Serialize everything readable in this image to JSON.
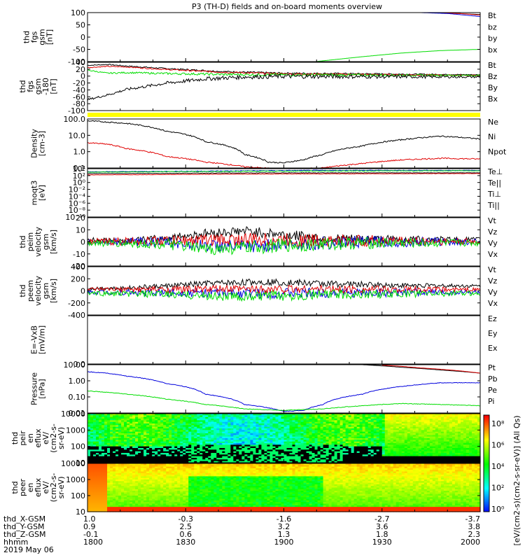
{
  "title": "P3 (TH-D) fields and on-board moments overview",
  "colors": {
    "black": "#000000",
    "red": "#e00000",
    "green": "#00dd00",
    "blue": "#0000dd",
    "yellow": "#ffff00"
  },
  "chart_data": [
    {
      "type": "line",
      "ylabel": [
        "thd",
        "fgs",
        "gsm",
        "[nT]"
      ],
      "yticks": [
        "100",
        "50",
        "0",
        "-50",
        "-100"
      ],
      "ylim": [
        -100,
        100
      ],
      "legend": [
        {
          "name": "Bt",
          "color": "#000000"
        },
        {
          "name": "bz",
          "color": "#e00000"
        },
        {
          "name": "by",
          "color": "#00dd00"
        },
        {
          "name": "bx",
          "color": "#0000dd"
        }
      ],
      "series": [
        {
          "name": "Bt",
          "x": [
            0.89,
            0.95,
            1.0
          ],
          "values": [
            100,
            96,
            92
          ],
          "noise": 0
        },
        {
          "name": "bz",
          "x": [
            0.89,
            0.95,
            1.0
          ],
          "values": [
            100,
            96,
            90
          ],
          "noise": 0
        },
        {
          "name": "by",
          "x": [
            0.58,
            0.7,
            0.8,
            0.9,
            1.0
          ],
          "values": [
            -100,
            -80,
            -65,
            -55,
            -50
          ],
          "noise": 0
        },
        {
          "name": "bx",
          "x": [
            0.85,
            0.92,
            1.0
          ],
          "values": [
            100,
            96,
            84
          ],
          "noise": 0
        }
      ]
    },
    {
      "type": "line",
      "ylabel": [
        "thd",
        "fgs",
        "gsm",
        "-180",
        "[nT]"
      ],
      "yticks": [
        "40",
        "20",
        "0",
        "-20",
        "-40",
        "-60",
        "-80",
        "-100"
      ],
      "ylim": [
        -110,
        45
      ],
      "legend": [
        {
          "name": "Bt",
          "color": "#000000"
        },
        {
          "name": "Bz",
          "color": "#e00000"
        },
        {
          "name": "By",
          "color": "#00dd00"
        },
        {
          "name": "Bx",
          "color": "#000000"
        }
      ],
      "series": [
        {
          "name": "Bt",
          "x": [
            0,
            0.05,
            0.1,
            0.2,
            0.35,
            0.5,
            1.0
          ],
          "values": [
            35,
            38,
            33,
            25,
            15,
            10,
            5
          ],
          "noise": 2
        },
        {
          "name": "Bz",
          "x": [
            0,
            0.05,
            0.1,
            0.2,
            0.35,
            0.5,
            1.0
          ],
          "values": [
            28,
            32,
            30,
            22,
            13,
            8,
            3
          ],
          "noise": 2
        },
        {
          "name": "By",
          "x": [
            0,
            0.05,
            0.1,
            0.2,
            0.35,
            0.5,
            1.0
          ],
          "values": [
            20,
            10,
            12,
            9,
            6,
            5,
            3
          ],
          "noise": 3
        },
        {
          "name": "Bx",
          "x": [
            0,
            0.05,
            0.1,
            0.2,
            0.3,
            0.4,
            0.5,
            1.0
          ],
          "values": [
            -75,
            -60,
            -42,
            -22,
            -8,
            -2,
            0,
            -2
          ],
          "noise": 5
        }
      ]
    },
    {
      "type": "line",
      "ylabel": [
        "Density",
        "[cm-3]"
      ],
      "yticks": [
        "100.0",
        "10.0",
        "1.0",
        "0.1"
      ],
      "ylim": [
        0.1,
        200
      ],
      "log": true,
      "legend": [
        {
          "name": "Ne",
          "color": "#e00000"
        },
        {
          "name": "Ni",
          "color": "#000000"
        },
        {
          "name": "Npot",
          "color": "#0000dd"
        }
      ],
      "series": [
        {
          "name": "Ni",
          "x": [
            0,
            0.1,
            0.2,
            0.3,
            0.4,
            0.46,
            0.5,
            0.55,
            0.6,
            0.7,
            0.8,
            0.9,
            1.0
          ],
          "values": [
            150,
            100,
            30,
            6,
            0.8,
            0.25,
            0.22,
            0.35,
            0.8,
            3,
            8,
            14,
            9
          ],
          "noise": 0.02
        },
        {
          "name": "Ne",
          "x": [
            0,
            0.05,
            0.1,
            0.2,
            0.3,
            0.4,
            0.5,
            0.6,
            0.7,
            0.8,
            0.9,
            1.0
          ],
          "values": [
            5,
            4,
            2,
            0.6,
            0.25,
            0.12,
            0.08,
            0.1,
            0.2,
            0.35,
            0.45,
            0.4
          ],
          "noise": 0.02
        }
      ]
    },
    {
      "type": "line",
      "ylabel": [
        "moqt3",
        "[eV]"
      ],
      "yticks": [
        "10⁴",
        "10²",
        "10⁰",
        "10⁻²",
        "10⁻⁴",
        "10⁻⁶",
        "10⁻⁸",
        "10⁻¹⁰"
      ],
      "ylim": [
        -10,
        4
      ],
      "legend": [
        {
          "name": "Te⊥",
          "color": "#e00000"
        },
        {
          "name": "Te||",
          "color": "#000000"
        },
        {
          "name": "Ti⊥",
          "color": "#0000dd"
        },
        {
          "name": "Ti||",
          "color": "#00dd00"
        }
      ],
      "series": [
        {
          "name": "Ti⊥",
          "x": [
            0,
            0.3,
            0.6,
            1.0
          ],
          "values": [
            3.1,
            3.3,
            3.5,
            3.5
          ],
          "noise": 0.08
        },
        {
          "name": "Ti||",
          "x": [
            0,
            0.3,
            0.6,
            1.0
          ],
          "values": [
            3.0,
            3.2,
            3.35,
            3.4
          ],
          "noise": 0.08
        },
        {
          "name": "Te||",
          "x": [
            0,
            0.5,
            1.0
          ],
          "values": [
            2.6,
            2.8,
            2.8
          ],
          "noise": 0.05
        },
        {
          "name": "Te⊥",
          "x": [
            0,
            0.5,
            1.0
          ],
          "values": [
            2.2,
            2.5,
            2.6
          ],
          "noise": 0.05
        }
      ]
    },
    {
      "type": "line",
      "ylabel": [
        "thd",
        "peim",
        "velocity",
        "gsm",
        "[km/s]"
      ],
      "yticks": [
        "20",
        "10",
        "0",
        "-10",
        "-20"
      ],
      "ylim": [
        -20,
        20
      ],
      "legend": [
        {
          "name": "Vt",
          "color": "#000000"
        },
        {
          "name": "Vz",
          "color": "#e00000"
        },
        {
          "name": "Vy",
          "color": "#00dd00"
        },
        {
          "name": "Vx",
          "color": "#0000dd"
        }
      ],
      "series": [
        {
          "name": "Vt",
          "x": [
            0,
            0.1,
            0.2,
            0.3,
            0.4,
            0.5,
            0.6,
            0.7,
            1.0
          ],
          "values": [
            2,
            1,
            3,
            7,
            9,
            6,
            3,
            2,
            2
          ],
          "noise": 3
        },
        {
          "name": "Vx",
          "x": [
            0,
            0.2,
            0.3,
            0.4,
            0.5,
            0.7,
            1.0
          ],
          "values": [
            0,
            0,
            -3,
            -4,
            -2,
            0,
            0
          ],
          "noise": 4
        },
        {
          "name": "Vz",
          "x": [
            0,
            0.2,
            0.4,
            0.6,
            1.0
          ],
          "values": [
            0,
            1,
            2,
            1,
            0
          ],
          "noise": 4
        },
        {
          "name": "Vy",
          "x": [
            0,
            0.2,
            0.3,
            0.4,
            0.5,
            0.7,
            1.0
          ],
          "values": [
            -1,
            -2,
            -6,
            -5,
            -3,
            -1,
            -1
          ],
          "noise": 4
        }
      ]
    },
    {
      "type": "line",
      "ylabel": [
        "thd",
        "peem",
        "velocity",
        "gsm",
        "[km/s]"
      ],
      "yticks": [
        "400",
        "200",
        "0",
        "-200",
        "-400"
      ],
      "ylim": [
        -400,
        400
      ],
      "legend": [
        {
          "name": "Vt",
          "color": "#000000"
        },
        {
          "name": "Vz",
          "color": "#e00000"
        },
        {
          "name": "Vy",
          "color": "#00dd00"
        },
        {
          "name": "Vx",
          "color": "#0000dd"
        }
      ],
      "series": [
        {
          "name": "Vt",
          "x": [
            0,
            0.1,
            0.2,
            0.3,
            0.45,
            0.6,
            0.8,
            1.0
          ],
          "values": [
            40,
            50,
            80,
            120,
            150,
            120,
            90,
            80
          ],
          "noise": 40
        },
        {
          "name": "Vx",
          "x": [
            0,
            0.5,
            1.0
          ],
          "values": [
            -20,
            -40,
            -20
          ],
          "noise": 60
        },
        {
          "name": "Vz",
          "x": [
            0,
            0.5,
            1.0
          ],
          "values": [
            20,
            30,
            20
          ],
          "noise": 50
        },
        {
          "name": "Vy",
          "x": [
            0,
            0.2,
            0.4,
            0.6,
            1.0
          ],
          "values": [
            -40,
            -60,
            -100,
            -60,
            -40
          ],
          "noise": 60
        }
      ]
    },
    {
      "type": "line",
      "ylabel": [
        "E=-VxB",
        "[mV/m]"
      ],
      "yticks": [
        "0.0"
      ],
      "ylim": [
        0,
        1
      ],
      "legend": [
        {
          "name": "Ez",
          "color": "#e00000"
        },
        {
          "name": "Ey",
          "color": "#00dd00"
        },
        {
          "name": "Ex",
          "color": "#0000dd"
        }
      ],
      "series": []
    },
    {
      "type": "line",
      "ylabel": [
        "Pressure",
        "[nPa]"
      ],
      "yticks": [
        "10.00",
        "1.00",
        "0.10",
        "0.01"
      ],
      "ylim": [
        0.008,
        15
      ],
      "log": true,
      "legend": [
        {
          "name": "Pt",
          "color": "#000000"
        },
        {
          "name": "Pb",
          "color": "#e00000"
        },
        {
          "name": "Pe",
          "color": "#0000dd"
        },
        {
          "name": "Pi",
          "color": "#00dd00"
        }
      ],
      "series": [
        {
          "name": "Pt",
          "x": [
            0.7,
            0.8,
            0.9,
            1.0
          ],
          "values": [
            15,
            10,
            6.5,
            4
          ],
          "noise": 0
        },
        {
          "name": "Pb",
          "x": [
            0.75,
            0.85,
            1.0
          ],
          "values": [
            14,
            9,
            4
          ],
          "noise": 0
        },
        {
          "name": "Pe",
          "x": [
            0,
            0.05,
            0.1,
            0.2,
            0.3,
            0.4,
            0.5,
            0.55,
            0.6,
            0.7,
            0.8,
            0.9,
            1.0
          ],
          "values": [
            5,
            4,
            2.5,
            0.8,
            0.15,
            0.03,
            0.01,
            0.012,
            0.03,
            0.15,
            0.5,
            0.9,
            0.9
          ],
          "noise": 0.01
        },
        {
          "name": "Pi",
          "x": [
            0,
            0.1,
            0.2,
            0.3,
            0.4,
            0.5,
            0.6,
            0.7,
            0.8,
            0.9,
            1.0
          ],
          "values": [
            0.25,
            0.15,
            0.07,
            0.03,
            0.015,
            0.012,
            0.015,
            0.025,
            0.035,
            0.03,
            0.025
          ],
          "noise": 0.01
        }
      ]
    },
    {
      "type": "heatmap",
      "ylabel": [
        "thd",
        "peir",
        "en",
        "eflux",
        "eV/",
        "(cm2-s-",
        "sr-eV)"
      ],
      "yticks": [
        "10000",
        "1000",
        "100",
        "10"
      ],
      "ylim": [
        5,
        20000
      ],
      "log": true
    },
    {
      "type": "heatmap",
      "ylabel": [
        "thd",
        "peer",
        "en",
        "eflux",
        "eV/",
        "(cm2-s-",
        "sr-eV)"
      ],
      "yticks": [
        "10000",
        "1000",
        "100",
        "10"
      ],
      "ylim": [
        5,
        20000
      ],
      "log": true
    }
  ],
  "colorbar": {
    "ticks": [
      "10⁸",
      "10⁶",
      "10⁴",
      "10²",
      "10⁰"
    ],
    "label": "[eV/(cm2-s)(cm2-s-sr-eV)] (All Qs)"
  },
  "xaxis": {
    "rows": [
      {
        "label": "thd_X-GSM",
        "values": [
          "1.0",
          "-0.3",
          "-1.6",
          "-2.7",
          "-3.7"
        ]
      },
      {
        "label": "thd_Y-GSM",
        "values": [
          "0.9",
          "2.5",
          "3.2",
          "3.6",
          "3.8"
        ]
      },
      {
        "label": "thd_Z-GSM",
        "values": [
          "-0.1",
          "0.6",
          "1.3",
          "1.8",
          "2.3"
        ]
      },
      {
        "label": "hhmm",
        "values": [
          "1800",
          "1830",
          "1900",
          "1930",
          "2000"
        ]
      }
    ],
    "date": "2019 May 06"
  }
}
